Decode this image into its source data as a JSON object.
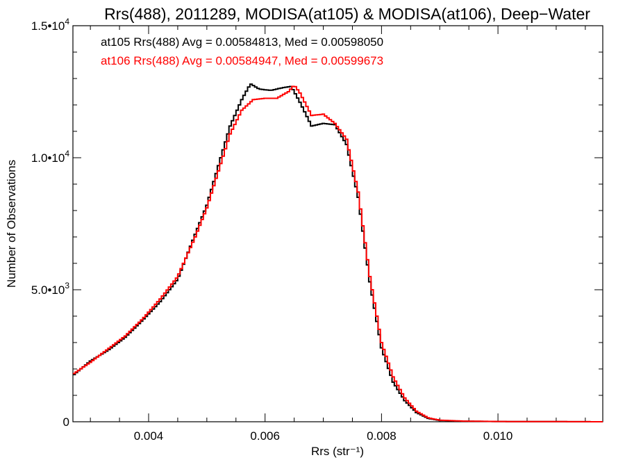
{
  "chart_data": {
    "type": "line",
    "title": "Rrs(488), 2011289, MODISA(at105) & MODISA(at106), Deep−Water",
    "xlabel": "Rrs (str⁻¹)",
    "ylabel": "Number of Observations",
    "xlim": [
      0.0027,
      0.0118
    ],
    "ylim": [
      0,
      15000
    ],
    "x_ticks": [
      {
        "value": 0.004,
        "label": "0.004"
      },
      {
        "value": 0.006,
        "label": "0.006"
      },
      {
        "value": 0.008,
        "label": "0.008"
      },
      {
        "value": 0.01,
        "label": "0.010"
      }
    ],
    "y_ticks": [
      {
        "value": 0,
        "mant": "0",
        "exp": ""
      },
      {
        "value": 5000,
        "mant": "5.0•10",
        "exp": "3"
      },
      {
        "value": 10000,
        "mant": "1.0•10",
        "exp": "4"
      },
      {
        "value": 15000,
        "mant": "1.5•10",
        "exp": "4"
      }
    ],
    "series": [
      {
        "legend": "at105 Rrs(488) Avg = 0.00584813, Med = 0.00598050",
        "color": "#000000",
        "points": [
          [
            0.0027,
            1750
          ],
          [
            0.003,
            2300
          ],
          [
            0.0033,
            2700
          ],
          [
            0.0036,
            3200
          ],
          [
            0.0039,
            3850
          ],
          [
            0.0042,
            4550
          ],
          [
            0.0045,
            5400
          ],
          [
            0.0048,
            7100
          ],
          [
            0.005,
            8200
          ],
          [
            0.0052,
            9700
          ],
          [
            0.0054,
            11200
          ],
          [
            0.0056,
            12200
          ],
          [
            0.00575,
            12800
          ],
          [
            0.0059,
            12600
          ],
          [
            0.0061,
            12550
          ],
          [
            0.0063,
            12650
          ],
          [
            0.00645,
            12700
          ],
          [
            0.0066,
            12100
          ],
          [
            0.0068,
            11200
          ],
          [
            0.007,
            11300
          ],
          [
            0.0072,
            11250
          ],
          [
            0.0074,
            10500
          ],
          [
            0.0076,
            8500
          ],
          [
            0.0078,
            5300
          ],
          [
            0.008,
            2800
          ],
          [
            0.0082,
            1500
          ],
          [
            0.0084,
            800
          ],
          [
            0.0086,
            350
          ],
          [
            0.0088,
            130
          ],
          [
            0.009,
            50
          ],
          [
            0.0094,
            20
          ],
          [
            0.01,
            10
          ],
          [
            0.011,
            5
          ],
          [
            0.0118,
            0
          ]
        ]
      },
      {
        "legend": "at106 Rrs(488) Avg = 0.00584947, Med = 0.00599673",
        "color": "#ff0000",
        "points": [
          [
            0.0027,
            1800
          ],
          [
            0.003,
            2250
          ],
          [
            0.0033,
            2750
          ],
          [
            0.0036,
            3250
          ],
          [
            0.0039,
            3900
          ],
          [
            0.0042,
            4650
          ],
          [
            0.0045,
            5500
          ],
          [
            0.0048,
            7000
          ],
          [
            0.005,
            8100
          ],
          [
            0.0052,
            9500
          ],
          [
            0.0054,
            10900
          ],
          [
            0.0056,
            11800
          ],
          [
            0.0058,
            12200
          ],
          [
            0.006,
            12250
          ],
          [
            0.0062,
            12250
          ],
          [
            0.0064,
            12500
          ],
          [
            0.0065,
            12750
          ],
          [
            0.0066,
            12450
          ],
          [
            0.0068,
            11600
          ],
          [
            0.007,
            11650
          ],
          [
            0.0072,
            11300
          ],
          [
            0.0074,
            10700
          ],
          [
            0.0076,
            8700
          ],
          [
            0.0078,
            5500
          ],
          [
            0.008,
            3000
          ],
          [
            0.0082,
            1700
          ],
          [
            0.0084,
            900
          ],
          [
            0.0086,
            400
          ],
          [
            0.0088,
            150
          ],
          [
            0.009,
            60
          ],
          [
            0.0094,
            25
          ],
          [
            0.01,
            10
          ],
          [
            0.011,
            5
          ],
          [
            0.0118,
            0
          ]
        ]
      }
    ]
  }
}
